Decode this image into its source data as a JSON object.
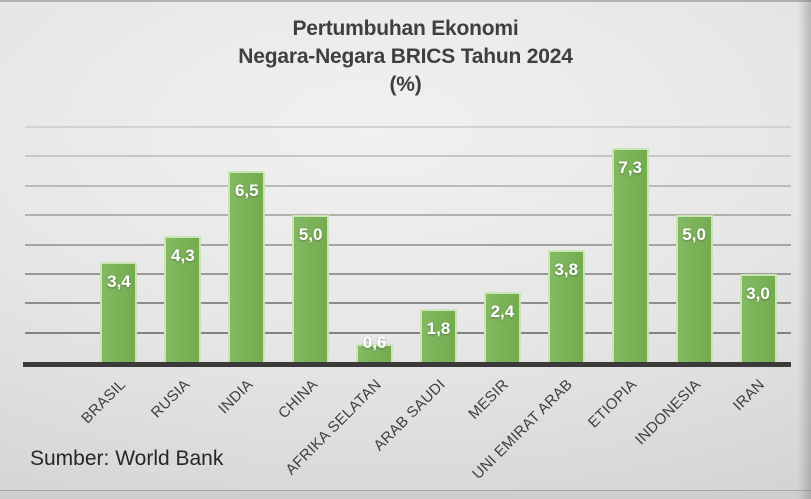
{
  "title": {
    "lines": [
      "Pertumbuhan Ekonomi",
      "Negara-Negara BRICS Tahun 2024",
      "(%)"
    ]
  },
  "source": "Sumber: World Bank",
  "chart_data": {
    "type": "bar",
    "title": "Pertumbuhan Ekonomi Negara-Negara BRICS Tahun 2024 (%)",
    "categories": [
      "BRASIL",
      "RUSIA",
      "INDIA",
      "CHINA",
      "AFRIKA SELATAN",
      "ARAB SAUDI",
      "MESIR",
      "UNI EMIRAT ARAB",
      "ETIOPIA",
      "INDONESIA",
      "IRAN"
    ],
    "values": [
      3.4,
      4.3,
      6.5,
      5.0,
      0.6,
      1.8,
      2.4,
      3.8,
      7.3,
      5.0,
      3.0
    ],
    "value_labels": [
      "3,4",
      "4,3",
      "6,5",
      "5,0",
      "0,6",
      "1,8",
      "2,4",
      "3,8",
      "7,3",
      "5,0",
      "3,0"
    ],
    "xlabel": "",
    "ylabel": "",
    "ylim": [
      0,
      8
    ],
    "gridline_step": 1,
    "grid": true,
    "legend": false,
    "bar_color": "#7ab257",
    "bar_border_color": "#cde3b8",
    "value_label_color": "#ffffff",
    "axis_line_color": "#3a3a3a",
    "source": "Sumber: World Bank"
  }
}
